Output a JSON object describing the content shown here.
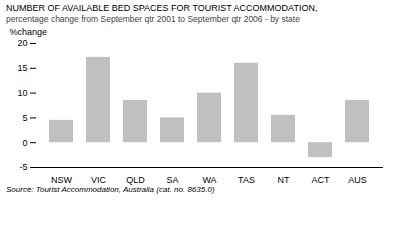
{
  "chart_data": {
    "type": "bar",
    "title": "NUMBER OF AVAILABLE BED SPACES FOR TOURIST ACCOMMODATION,",
    "subtitle": "percentage change from September qtr 2001 to September qtr 2006 - by state",
    "ylabel": "%change",
    "source": "Source: Tourist Accommodation, Australia (cat.  no. 8635.0)",
    "categories": [
      "NSW",
      "VIC",
      "QLD",
      "SA",
      "WA",
      "TAS",
      "NT",
      "ACT",
      "AUS"
    ],
    "values": [
      4.5,
      17.2,
      8.5,
      5.0,
      10.0,
      16.0,
      5.5,
      -3.0,
      8.5
    ],
    "color": "#c0c0c0",
    "ylim": [
      -5,
      20
    ],
    "yticks": [
      -5,
      0,
      5,
      10,
      15,
      20
    ],
    "grid": false
  }
}
